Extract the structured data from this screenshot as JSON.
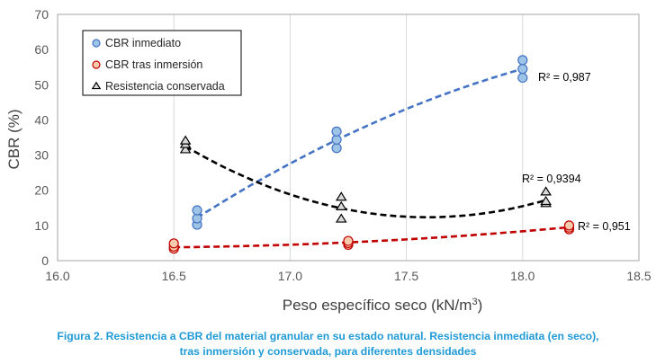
{
  "chart_data": {
    "type": "scatter",
    "xlabel": "Peso específico seco (kN/m",
    "xlabel_sup": "3",
    "xlabel_end": ")",
    "ylabel": "CBR (%)",
    "xlim": [
      16.0,
      18.5
    ],
    "ylim": [
      0,
      70
    ],
    "x_ticks": [
      "16.0",
      "16.5",
      "17.0",
      "17.5",
      "18.0",
      "18.5"
    ],
    "x_tick_values": [
      16.0,
      16.5,
      17.0,
      17.5,
      18.0,
      18.5
    ],
    "y_ticks": [
      "0",
      "10",
      "20",
      "30",
      "40",
      "50",
      "60",
      "70"
    ],
    "y_tick_values": [
      0,
      10,
      20,
      30,
      40,
      50,
      60,
      70
    ],
    "grid": "vertical",
    "legend_position": "top-left",
    "series": [
      {
        "name": "CBR inmediato",
        "marker": "circle",
        "color": "#4472c4",
        "fill": "#9dc3e6",
        "points": [
          [
            16.6,
            10.2
          ],
          [
            16.6,
            12.0
          ],
          [
            16.6,
            14.3
          ],
          [
            17.2,
            32.0
          ],
          [
            17.2,
            34.4
          ],
          [
            17.2,
            36.7
          ],
          [
            18.0,
            52.0
          ],
          [
            18.0,
            54.5
          ],
          [
            18.0,
            57.0
          ]
        ],
        "trend": {
          "type": "poly2",
          "range": [
            16.6,
            18.0
          ],
          "via": [
            [
              16.6,
              12.2
            ],
            [
              17.3,
              37.4
            ],
            [
              18.0,
              54.5
            ]
          ],
          "color": "#4472c4"
        },
        "r2": "R² = 0,987"
      },
      {
        "name": "CBR tras inmersión",
        "marker": "circle",
        "color": "#c00000",
        "fill": "#f8cbad",
        "points": [
          [
            16.5,
            3.4
          ],
          [
            16.5,
            4.0
          ],
          [
            16.5,
            4.9
          ],
          [
            17.25,
            4.5
          ],
          [
            17.25,
            5.0
          ],
          [
            17.25,
            5.6
          ],
          [
            18.2,
            8.9
          ],
          [
            18.2,
            9.4
          ],
          [
            18.2,
            10.0
          ]
        ],
        "trend": {
          "type": "poly2",
          "range": [
            16.5,
            18.2
          ],
          "via": [
            [
              16.5,
              3.8
            ],
            [
              17.35,
              5.5
            ],
            [
              18.2,
              9.5
            ]
          ],
          "color": "#c00000"
        },
        "r2": "R² = 0,951"
      },
      {
        "name": "Resistencia conservada",
        "marker": "triangle",
        "color": "#000000",
        "fill": "#d9d9d9",
        "points": [
          [
            16.55,
            31.5
          ],
          [
            16.55,
            33.0
          ],
          [
            16.55,
            34.0
          ],
          [
            17.22,
            11.8
          ],
          [
            17.22,
            15.3
          ],
          [
            17.22,
            18.0
          ],
          [
            18.1,
            16.2
          ],
          [
            18.1,
            16.8
          ],
          [
            18.1,
            19.5
          ]
        ],
        "trend": {
          "type": "poly2",
          "range": [
            16.55,
            18.1
          ],
          "via": [
            [
              16.55,
              32.5
            ],
            [
              17.3,
              13.9
            ],
            [
              18.1,
              17.2
            ]
          ],
          "color": "#000000"
        },
        "r2": "R² = 0,9394"
      }
    ]
  },
  "caption": {
    "line1": "Figura 2. Resistencia a CBR del material granular en su estado natural. Resistencia inmediata (en seco),",
    "line2": "tras inmersión y conservada, para diferentes densidades"
  }
}
